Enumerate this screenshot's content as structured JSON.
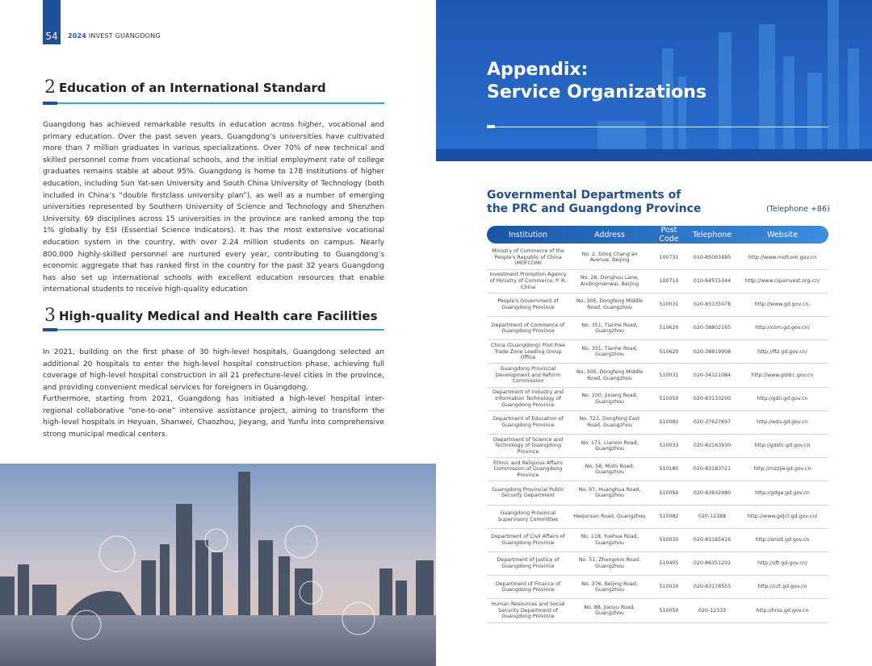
{
  "header": {
    "page_number": "54",
    "year": "2024",
    "title": "INVEST GUANGDONG"
  },
  "sections": [
    {
      "number": "2",
      "title": "Education of an International Standard",
      "paragraphs": [
        "Guangdong has achieved remarkable results in education across higher, vocational and primary education. Over the past seven years, Guangdong’s universities have cultivated more than 7 million graduates in various specializations. Over 70% of new technical and skilled personnel come from vocational schools, and the initial employment rate of college graduates remains stable at about 95%. Guangdong is home to 178 institutions of higher education, including Sun Yat-sen University and South China University of Technology (both included in China’s “double firstclass university plan”), as well as a number of emerging universities represented by Southern University of Science and Technology and Shenzhen University. 69 disciplines across 15 universities in the province are ranked among the top 1% globally by ESI (Essential Science Indicators). It has the most extensive vocational education system in the country, with over 2.24 million students on campus. Nearly 800,000 highly-skilled personnel are nurtured every year, contributing to Guangdong’s economic aggregate that has ranked first in the country for the past 32 years Guangdong has also set up international schools with excellent education resources that enable international students to receive high-quality education"
      ]
    },
    {
      "number": "3",
      "title": "High-quality Medical and Health care Facilities",
      "paragraphs": [
        "In 2021, building on the first phase of 30 high-level hospitals, Guangdong selected an additional 20 hospitals to enter the high-level hospital construction phase, achieving full coverage of high-level hospital construction in all 21 prefecture-level cities in the province, and providing convenient medical services for foreigners in Guangdong.",
        "Furthermore, starting from 2021, Guangdong has initiated a high-level hospital inter-regional collaborative “one-to-one” intensive assistance project, aiming to transform the high-level hospitals in Heyuan, Shanwei, Chaozhou, Jieyang, and Yunfu into comprehensive strong municipal medical centers."
      ]
    }
  ],
  "appendix": {
    "title_line1": "Appendix:",
    "title_line2": "Service Organizations"
  },
  "table": {
    "heading_line1": "Governmental Departments of",
    "heading_line2": "the PRC and Guangdong Province",
    "note": "(Telephone +86)",
    "columns": [
      "Institution",
      "Address",
      "Post Code",
      "Telephone",
      "Website"
    ],
    "rows": [
      [
        "Ministry of Commerce of the People's Republic of China (MOFCOM)",
        "No. 2, Dong Chang'an Avenue, Beijing",
        "100731",
        "010-85093485",
        "http://www.mofcom.gov.cn"
      ],
      [
        "Investment Promotion Agency of Ministry of Commerce, P. R. China",
        "No. 28, Donghou Lane, Andingmenwai, Beijing",
        "100710",
        "010-64515344",
        "http://www.cipainvest.org.cn/"
      ],
      [
        "People's Government of Guangdong Province",
        "No. 305, Dongfeng Middle Road, Guangzhou",
        "510031",
        "020-83135078",
        "http://www.gd.gov.cn."
      ],
      [
        "Department of Commerce of Guangdong Province",
        "No. 351, Tianhe Road, Guangzhou",
        "510620",
        "020-38802165",
        "http://com.gd.gov.cn/"
      ],
      [
        "China (Guangdong) Pilot Free Trade Zone Leading Group Office",
        "No. 351, Tianhe Road, Guangzhou",
        "510620",
        "020-38819908",
        "http://ftz.gd.gov.cn/"
      ],
      [
        "Guangdong Provincial Development and Reform Commission",
        "No. 305, Dongfeng Middle Road, Guangzhou",
        "510031",
        "020-34121084",
        "http://www.gddrc.gov.cn"
      ],
      [
        "Department of Industry and Information Technology of Guangdong Province",
        "No. 100, Jixiang Road, Guangzhou",
        "510050",
        "020-83133200",
        "http://gdii.gd.gov.cn"
      ],
      [
        "Department of Education of Guangdong Province",
        "No. 723, Dongfeng East Road, Guangzhou",
        "510080",
        "020-37627697",
        "http://edu.gd.gov.cn"
      ],
      [
        "Department of Science and Technology of Guangdong Province",
        "No. 171, Lianxin Road, Guangzhou",
        "510033",
        "020-83163930",
        "http://gdstc.gd.gov.cn"
      ],
      [
        "Ethnic and Religious Affairs Commission of Guangdong Province",
        "No. 58, Mishi Road, Guangzhou",
        "510180",
        "020-83183721",
        "http://mzzjw.gd.gov.cn"
      ],
      [
        "Guangdong Provincial Public Security Department",
        "No. 97, Huanghua Road, Guangzhou",
        "510050",
        "020-83832980",
        "http://gdga.gd.gov.cn"
      ],
      [
        "Guangdong Provincial Supervisory Committee",
        "Hequnsan Road, Guangzhou",
        "510082",
        "020-12388",
        "http://www.gdjct.gd.gov.cn/"
      ],
      [
        "Department of Civil Affairs of Guangdong Province",
        "No. 118, Yuehua Road, Guangzhou",
        "510030",
        "020-83185416",
        "http://smzt.gd.gov.cn"
      ],
      [
        "Department of Justice of Guangdong Province",
        "No. 51, Zhengmin Road, Guangzhou",
        "510405",
        "020-86351202",
        "http://sft.gd.gov.cn/"
      ],
      [
        "Department of Finance of Guangdong Province",
        "No. 376, Beijing Road, Guangzhou",
        "510030",
        "020-83178555",
        "http://czt.gd.gov.cn"
      ],
      [
        "Human Resources and Social Security Department of Guangdong Province",
        "No. 88, Jiaoyu Road, Guangzhou",
        "510050",
        "020-12333",
        "http://hrss.gd.gov.cn"
      ]
    ]
  }
}
